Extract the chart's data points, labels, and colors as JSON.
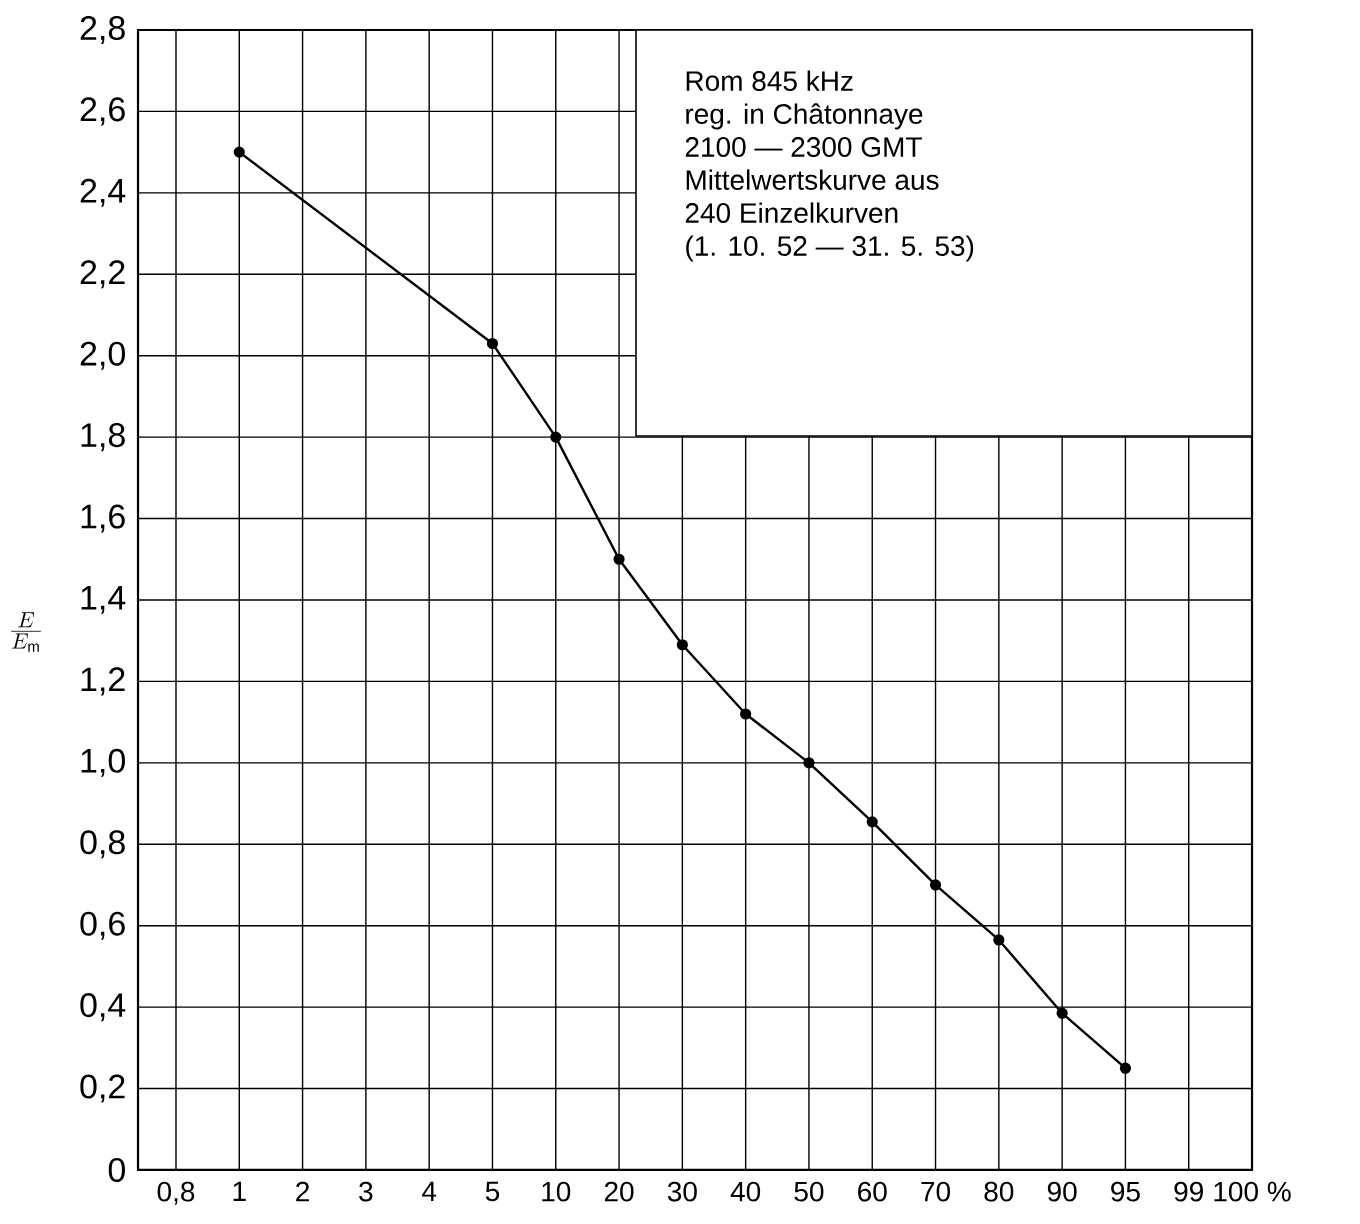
{
  "chart_data": {
    "type": "line",
    "ylabel": "\\frac{E}{E_{\\mathrm{m}}}",
    "annotations": [
      "Rom  845 kHz",
      "reg. in Châtonnaye",
      "2100 — 2300 GMT",
      "Mittelwertskurve aus",
      "240 Einzelkurven",
      "(1. 10. 52 — 31. 5. 53)"
    ],
    "categories": [
      "0,8",
      "1",
      "2",
      "3",
      "4",
      "5",
      "10",
      "20",
      "30",
      "40",
      "50",
      "60",
      "70",
      "80",
      "90",
      "95",
      "99",
      "100 %"
    ],
    "series": [
      {
        "color": "#000000",
        "values": [
          null,
          2.5,
          null,
          null,
          null,
          2.03,
          1.8,
          1.5,
          1.29,
          1.12,
          1.0,
          0.855,
          0.7,
          0.565,
          0.385,
          0.25,
          null,
          null
        ]
      }
    ],
    "ylim": [
      0,
      2.8
    ],
    "yticks": [
      0,
      {
        "value": 0.2,
        "label": "0,2"
      },
      {
        "value": 0.4,
        "label": "0,4"
      },
      {
        "value": 0.6,
        "label": "0,6"
      },
      {
        "value": 0.8,
        "label": "0,8"
      },
      {
        "value": 1.0,
        "label": "1,0"
      },
      {
        "value": 1.2,
        "label": "1,2"
      },
      {
        "value": 1.4,
        "label": "1,4"
      },
      {
        "value": 1.6,
        "label": "1,6"
      },
      {
        "value": 1.8,
        "label": "1,8"
      },
      {
        "value": 2.0,
        "label": "2,0"
      },
      {
        "value": 2.2,
        "label": "2,2"
      },
      {
        "value": 2.4,
        "label": "2,4"
      },
      {
        "value": 2.6,
        "label": "2,6"
      },
      {
        "value": 2.8,
        "label": "2,8"
      }
    ],
    "grid": true,
    "marker": "circle",
    "line_style": "solid"
  }
}
